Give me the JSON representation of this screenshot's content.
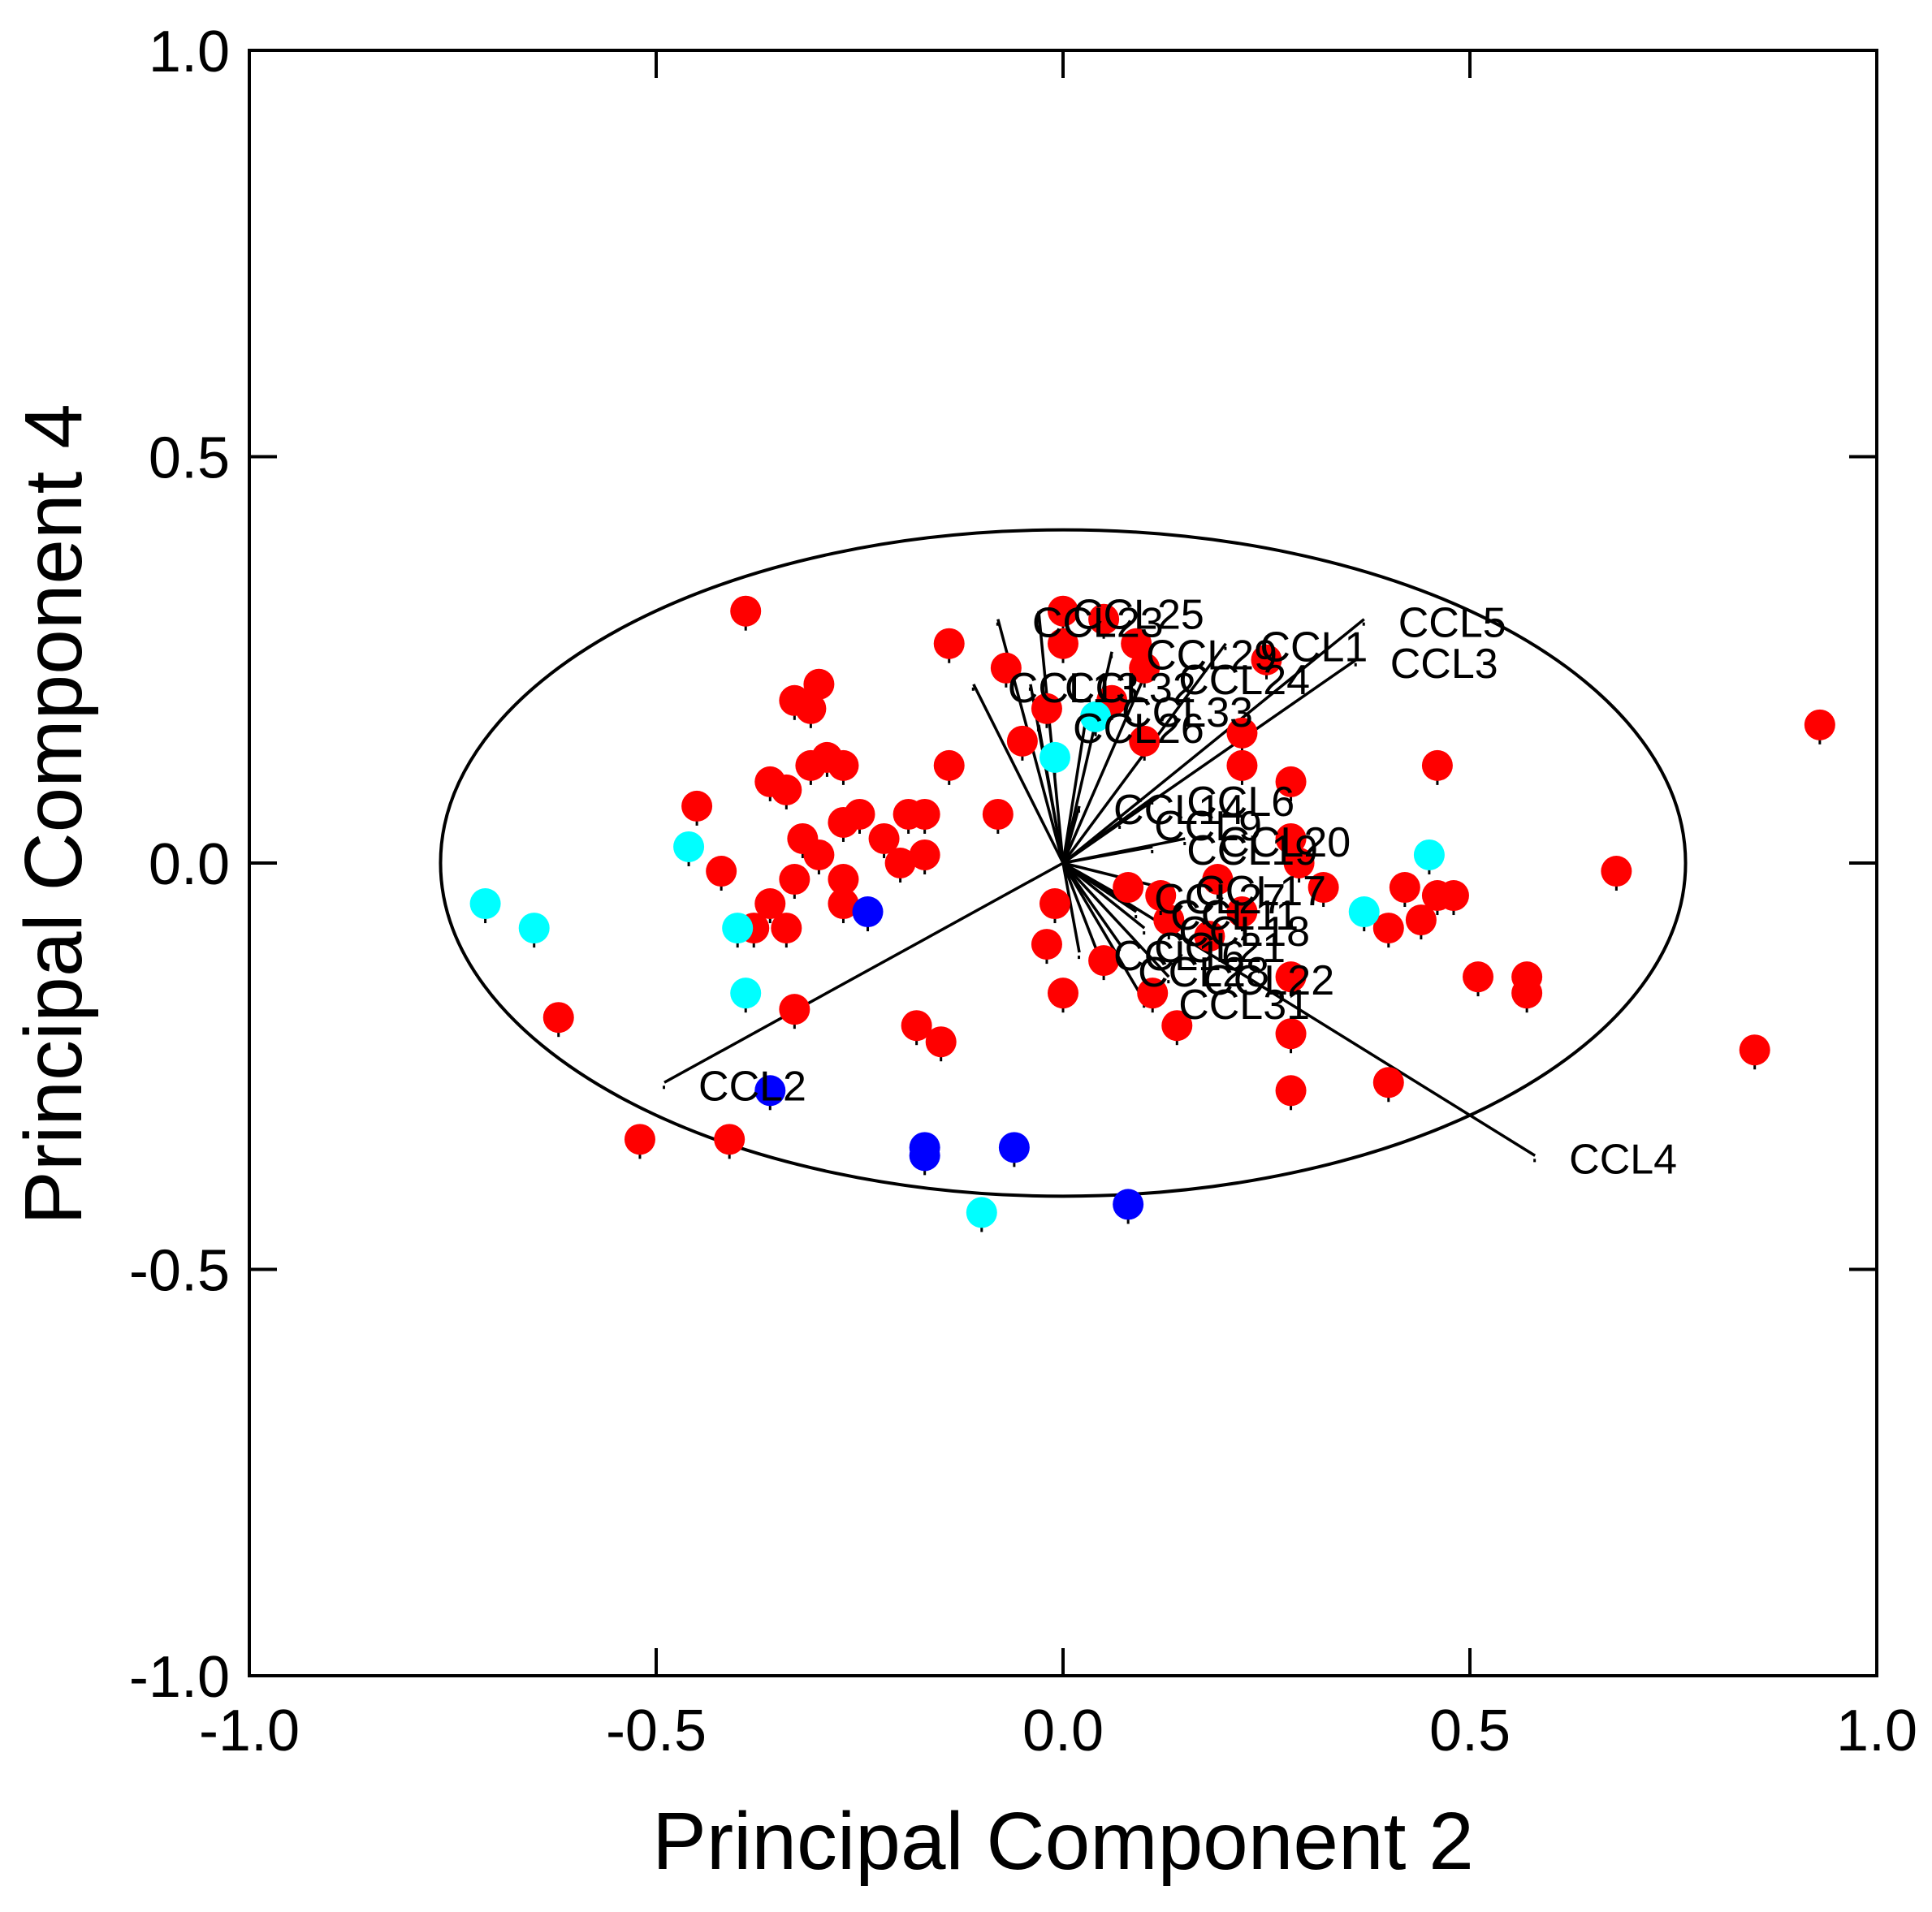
{
  "chart_data": {
    "type": "scatter",
    "xlabel": "Principal Component 2",
    "ylabel": "Principal Component 4",
    "xlim": [
      -1.0,
      1.0
    ],
    "ylim": [
      -1.0,
      1.0
    ],
    "x_ticks": [
      "-1.0",
      "-0.5",
      "0.0",
      "0.5",
      "1.0"
    ],
    "y_ticks": [
      "1.0",
      "0.5",
      "0.0",
      "-0.5",
      "-1.0"
    ],
    "x_tick_values": [
      -1.0,
      -0.5,
      0.0,
      0.5,
      1.0
    ],
    "y_tick_values": [
      1.0,
      0.5,
      0.0,
      -0.5,
      -1.0
    ],
    "grid": false,
    "ellipse": {
      "cx": 0.0,
      "cy": 0.0,
      "rx": 0.765,
      "ry": 0.41
    },
    "colors": {
      "red": "#ff0000",
      "cyan": "#00ffff",
      "blue": "#0000ff"
    },
    "series": [
      {
        "color": "red",
        "points": [
          [
            -0.39,
            0.31
          ],
          [
            -0.14,
            0.27
          ],
          [
            -0.3,
            0.22
          ],
          [
            -0.33,
            0.2
          ],
          [
            -0.31,
            0.19
          ],
          [
            -0.29,
            0.13
          ],
          [
            -0.31,
            0.12
          ],
          [
            -0.27,
            0.12
          ],
          [
            -0.14,
            0.12
          ],
          [
            -0.36,
            0.1
          ],
          [
            -0.34,
            0.09
          ],
          [
            -0.45,
            0.07
          ],
          [
            -0.25,
            0.06
          ],
          [
            -0.19,
            0.06
          ],
          [
            -0.17,
            0.06
          ],
          [
            -0.27,
            0.05
          ],
          [
            -0.32,
            0.03
          ],
          [
            -0.22,
            0.03
          ],
          [
            -0.3,
            0.01
          ],
          [
            -0.2,
            0.0
          ],
          [
            -0.17,
            0.01
          ],
          [
            -0.42,
            -0.01
          ],
          [
            -0.33,
            -0.02
          ],
          [
            -0.27,
            -0.02
          ],
          [
            -0.36,
            -0.05
          ],
          [
            -0.27,
            -0.05
          ],
          [
            -0.38,
            -0.08
          ],
          [
            -0.34,
            -0.08
          ],
          [
            -0.33,
            -0.18
          ],
          [
            -0.62,
            -0.19
          ],
          [
            -0.18,
            -0.2
          ],
          [
            -0.15,
            -0.22
          ],
          [
            -0.52,
            -0.34
          ],
          [
            -0.41,
            -0.34
          ],
          [
            -0.08,
            0.06
          ],
          [
            -0.07,
            0.24
          ],
          [
            0.0,
            0.31
          ],
          [
            0.05,
            0.3
          ],
          [
            0.09,
            0.27
          ],
          [
            0.0,
            0.27
          ],
          [
            0.25,
            0.25
          ],
          [
            0.22,
            0.16
          ],
          [
            0.22,
            0.12
          ],
          [
            0.28,
            0.1
          ],
          [
            0.46,
            0.12
          ],
          [
            0.1,
            0.15
          ],
          [
            0.1,
            0.24
          ],
          [
            0.28,
            0.03
          ],
          [
            0.29,
            0.0
          ],
          [
            0.19,
            -0.02
          ],
          [
            0.32,
            -0.03
          ],
          [
            0.42,
            -0.03
          ],
          [
            0.46,
            -0.04
          ],
          [
            0.48,
            -0.04
          ],
          [
            0.4,
            -0.08
          ],
          [
            0.44,
            -0.07
          ],
          [
            0.68,
            -0.01
          ],
          [
            0.51,
            -0.14
          ],
          [
            0.57,
            -0.14
          ],
          [
            0.57,
            -0.16
          ],
          [
            0.85,
            -0.23
          ],
          [
            0.93,
            0.17
          ],
          [
            -0.01,
            -0.05
          ],
          [
            -0.02,
            -0.1
          ],
          [
            0.0,
            -0.16
          ],
          [
            0.05,
            -0.12
          ],
          [
            0.11,
            -0.16
          ],
          [
            0.14,
            -0.2
          ],
          [
            0.28,
            -0.14
          ],
          [
            0.28,
            -0.21
          ],
          [
            0.28,
            -0.28
          ],
          [
            0.4,
            -0.27
          ],
          [
            0.13,
            -0.07
          ],
          [
            0.18,
            -0.09
          ],
          [
            0.22,
            -0.06
          ],
          [
            0.08,
            -0.03
          ],
          [
            0.12,
            -0.04
          ],
          [
            -0.05,
            0.15
          ],
          [
            -0.02,
            0.19
          ],
          [
            0.06,
            0.2
          ]
        ]
      },
      {
        "color": "cyan",
        "points": [
          [
            -0.46,
            0.02
          ],
          [
            -0.71,
            -0.05
          ],
          [
            -0.65,
            -0.08
          ],
          [
            -0.4,
            -0.08
          ],
          [
            -0.39,
            -0.16
          ],
          [
            0.45,
            0.01
          ],
          [
            0.37,
            -0.06
          ],
          [
            -0.1,
            -0.43
          ],
          [
            0.04,
            0.18
          ],
          [
            -0.01,
            0.13
          ]
        ]
      },
      {
        "color": "blue",
        "points": [
          [
            -0.24,
            -0.06
          ],
          [
            -0.36,
            -0.28
          ],
          [
            -0.17,
            -0.35
          ],
          [
            -0.17,
            -0.36
          ],
          [
            -0.06,
            -0.35
          ],
          [
            0.08,
            -0.42
          ]
        ]
      }
    ],
    "vectors": [
      {
        "label": "CCL5",
        "x": 0.37,
        "y": 0.3
      },
      {
        "label": "CCL3",
        "x": 0.36,
        "y": 0.25
      },
      {
        "label": "CCL1",
        "x": 0.2,
        "y": 0.27
      },
      {
        "label": "CCL2",
        "x": -0.49,
        "y": -0.27
      },
      {
        "label": "CCL4",
        "x": 0.58,
        "y": -0.36
      },
      {
        "label": "CCL31",
        "x": 0.1,
        "y": -0.17
      },
      {
        "label": "CCL22",
        "x": 0.13,
        "y": -0.14
      },
      {
        "label": "CCL25",
        "x": -0.03,
        "y": 0.31
      },
      {
        "label": "CCL23",
        "x": -0.08,
        "y": 0.3
      },
      {
        "label": "CCL29",
        "x": 0.06,
        "y": 0.26
      },
      {
        "label": "CCL24",
        "x": 0.1,
        "y": 0.23
      },
      {
        "label": "CCL32",
        "x": -0.04,
        "y": 0.22
      },
      {
        "label": "CCL13",
        "x": -0.11,
        "y": 0.22
      },
      {
        "label": "CCL33",
        "x": 0.03,
        "y": 0.19
      },
      {
        "label": "CCL26",
        "x": -0.03,
        "y": 0.17
      },
      {
        "label": "CCL14",
        "x": 0.02,
        "y": 0.07
      },
      {
        "label": "CCL6",
        "x": 0.11,
        "y": 0.08
      },
      {
        "label": "CCL9",
        "x": 0.07,
        "y": 0.05
      },
      {
        "label": "CCL20",
        "x": 0.15,
        "y": 0.03
      },
      {
        "label": "CCL19",
        "x": 0.11,
        "y": 0.02
      },
      {
        "label": "CCL17",
        "x": 0.12,
        "y": -0.03
      },
      {
        "label": "CCL27",
        "x": 0.07,
        "y": -0.04
      },
      {
        "label": "CCL11",
        "x": 0.09,
        "y": -0.06
      },
      {
        "label": "CCL18",
        "x": 0.1,
        "y": -0.08
      },
      {
        "label": "CCL21",
        "x": 0.07,
        "y": -0.1
      },
      {
        "label": "CCL16",
        "x": 0.02,
        "y": -0.11
      },
      {
        "label": "CCL28",
        "x": 0.05,
        "y": -0.13
      }
    ]
  }
}
